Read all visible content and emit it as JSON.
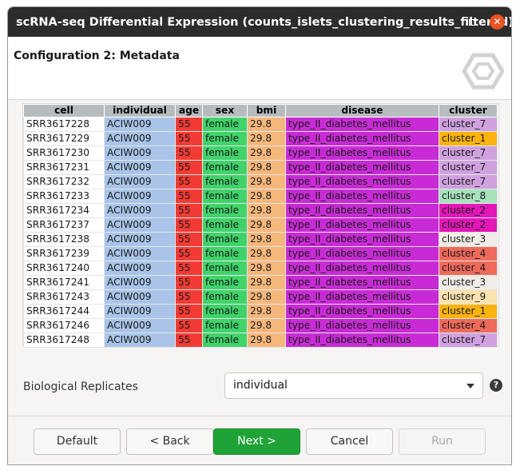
{
  "window": {
    "title": "scRNA-seq Differential Expression (counts_islets_clustering_results_filtered)"
  },
  "header": {
    "title": "Configuration 2: Metadata"
  },
  "table": {
    "columns": [
      "cell",
      "individual",
      "age",
      "sex",
      "bmi",
      "disease",
      "cluster"
    ],
    "rows": [
      {
        "cell": "SRR3617228",
        "individual": "ACIW009",
        "age": "55",
        "sex": "female",
        "bmi": "29.8",
        "disease": "type_II_diabetes_mellitus",
        "cluster": "cluster_7"
      },
      {
        "cell": "SRR3617229",
        "individual": "ACIW009",
        "age": "55",
        "sex": "female",
        "bmi": "29.8",
        "disease": "type_II_diabetes_mellitus",
        "cluster": "cluster_1"
      },
      {
        "cell": "SRR3617230",
        "individual": "ACIW009",
        "age": "55",
        "sex": "female",
        "bmi": "29.8",
        "disease": "type_II_diabetes_mellitus",
        "cluster": "cluster_7"
      },
      {
        "cell": "SRR3617231",
        "individual": "ACIW009",
        "age": "55",
        "sex": "female",
        "bmi": "29.8",
        "disease": "type_II_diabetes_mellitus",
        "cluster": "cluster_7"
      },
      {
        "cell": "SRR3617232",
        "individual": "ACIW009",
        "age": "55",
        "sex": "female",
        "bmi": "29.8",
        "disease": "type_II_diabetes_mellitus",
        "cluster": "cluster_7"
      },
      {
        "cell": "SRR3617233",
        "individual": "ACIW009",
        "age": "55",
        "sex": "female",
        "bmi": "29.8",
        "disease": "type_II_diabetes_mellitus",
        "cluster": "cluster_8"
      },
      {
        "cell": "SRR3617234",
        "individual": "ACIW009",
        "age": "55",
        "sex": "female",
        "bmi": "29.8",
        "disease": "type_II_diabetes_mellitus",
        "cluster": "cluster_2"
      },
      {
        "cell": "SRR3617237",
        "individual": "ACIW009",
        "age": "55",
        "sex": "female",
        "bmi": "29.8",
        "disease": "type_II_diabetes_mellitus",
        "cluster": "cluster_2"
      },
      {
        "cell": "SRR3617238",
        "individual": "ACIW009",
        "age": "55",
        "sex": "female",
        "bmi": "29.8",
        "disease": "type_II_diabetes_mellitus",
        "cluster": "cluster_3"
      },
      {
        "cell": "SRR3617239",
        "individual": "ACIW009",
        "age": "55",
        "sex": "female",
        "bmi": "29.8",
        "disease": "type_II_diabetes_mellitus",
        "cluster": "cluster_4"
      },
      {
        "cell": "SRR3617240",
        "individual": "ACIW009",
        "age": "55",
        "sex": "female",
        "bmi": "29.8",
        "disease": "type_II_diabetes_mellitus",
        "cluster": "cluster_4"
      },
      {
        "cell": "SRR3617241",
        "individual": "ACIW009",
        "age": "55",
        "sex": "female",
        "bmi": "29.8",
        "disease": "type_II_diabetes_mellitus",
        "cluster": "cluster_3"
      },
      {
        "cell": "SRR3617243",
        "individual": "ACIW009",
        "age": "55",
        "sex": "female",
        "bmi": "29.8",
        "disease": "type_II_diabetes_mellitus",
        "cluster": "cluster_9"
      },
      {
        "cell": "SRR3617244",
        "individual": "ACIW009",
        "age": "55",
        "sex": "female",
        "bmi": "29.8",
        "disease": "type_II_diabetes_mellitus",
        "cluster": "cluster_1"
      },
      {
        "cell": "SRR3617246",
        "individual": "ACIW009",
        "age": "55",
        "sex": "female",
        "bmi": "29.8",
        "disease": "type_II_diabetes_mellitus",
        "cluster": "cluster_4"
      },
      {
        "cell": "SRR3617248",
        "individual": "ACIW009",
        "age": "55",
        "sex": "female",
        "bmi": "29.8",
        "disease": "type_II_diabetes_mellitus",
        "cluster": "cluster_7"
      }
    ],
    "cluster_colors": {
      "cluster_1": "#fbb40f",
      "cluster_2": "#e316b8",
      "cluster_3": "#f1ede6",
      "cluster_4": "#ee6a5b",
      "cluster_7": "#cfa2df",
      "cluster_8": "#a6e2bb",
      "cluster_9": "#fbe2b0"
    }
  },
  "replicates": {
    "label": "Biological Replicates",
    "value": "individual"
  },
  "buttons": {
    "default": "Default",
    "back": "< Back",
    "next": "Next >",
    "cancel": "Cancel",
    "run": "Run"
  }
}
